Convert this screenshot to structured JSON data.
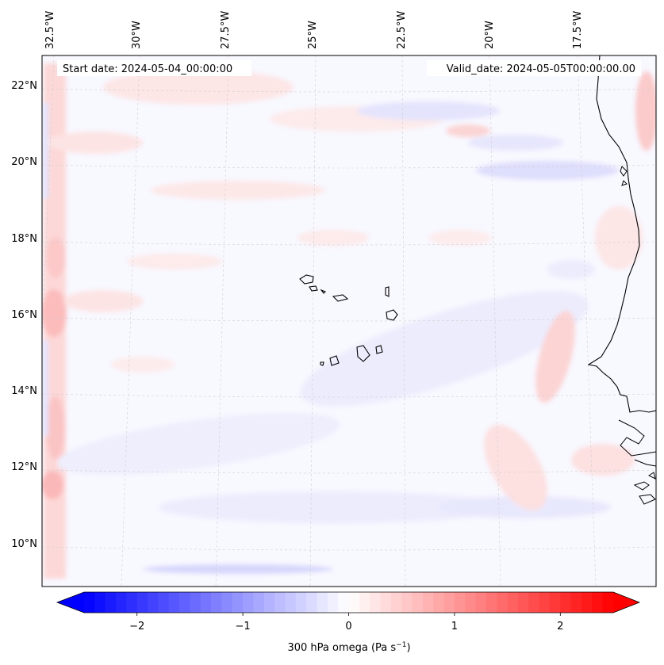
{
  "header": {
    "start_date": "Start date: 2024-05-04_00:00:00",
    "valid_date": "Valid_date: 2024-05-05T00:00:00.00"
  },
  "axes": {
    "lon_labels": [
      "32.5°W",
      "30°W",
      "27.5°W",
      "25°W",
      "22.5°W",
      "20°W",
      "17.5°W"
    ],
    "lat_labels": [
      "22°N",
      "20°N",
      "18°N",
      "16°N",
      "14°N",
      "12°N",
      "10°N"
    ]
  },
  "colorbar": {
    "label_prefix": "300 hPa omega (Pa s",
    "label_exp": "−1",
    "label_suffix": ")",
    "ticks": [
      "−2",
      "−1",
      "0",
      "1",
      "2"
    ],
    "tick_values": [
      -2,
      -1,
      0,
      1,
      2
    ],
    "range": [
      -2.5,
      2.5
    ],
    "colors": {
      "min": "#0000ff",
      "mid": "#ffffff",
      "max": "#ff0000"
    }
  },
  "map": {
    "variable": "300 hPa omega",
    "coastline_color": "#000000",
    "gridline_color": "#cccccc"
  }
}
